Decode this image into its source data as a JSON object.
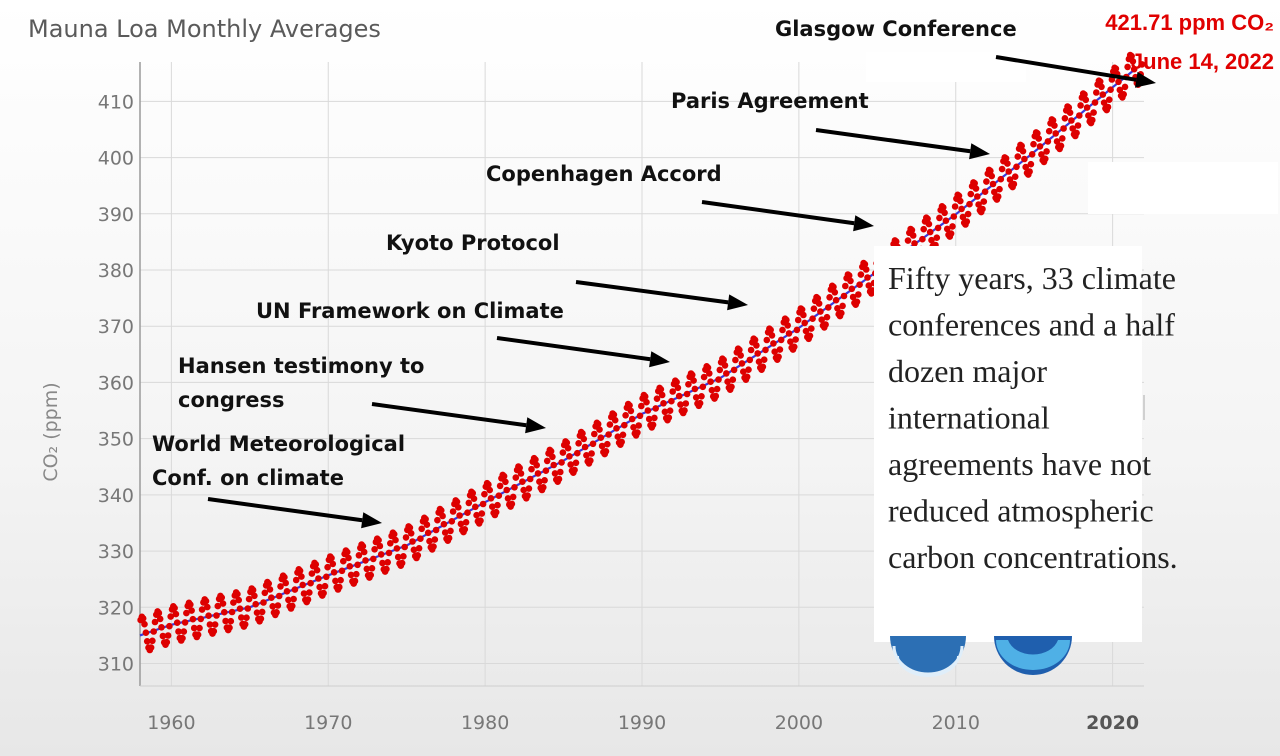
{
  "chart_data": {
    "type": "line",
    "title": "Mauna Loa Monthly Averages",
    "xlabel": "",
    "ylabel": "CO₂ (ppm)",
    "xlim": [
      1958,
      2022
    ],
    "ylim": [
      306,
      417
    ],
    "x_ticks": [
      "1960",
      "1970",
      "1980",
      "1990",
      "2000",
      "2010",
      "2020"
    ],
    "y_ticks": [
      "310",
      "320",
      "330",
      "340",
      "350",
      "360",
      "370",
      "380",
      "390",
      "400",
      "410"
    ],
    "grid": true,
    "series": [
      {
        "role": "monthly-points",
        "color": "#dd0000",
        "x": [
          1958,
          1960,
          1965,
          1970,
          1975,
          1980,
          1985,
          1990,
          1995,
          2000,
          2005,
          2010,
          2015,
          2020,
          2022
        ],
        "y": [
          315.0,
          316.9,
          320.0,
          325.7,
          331.0,
          338.7,
          346.1,
          354.4,
          360.8,
          369.7,
          379.8,
          389.9,
          401.0,
          412.5,
          417.0
        ],
        "seasonal_amplitude": 3.2
      },
      {
        "role": "trend-line",
        "color": "#3a3adc",
        "x": [
          1958,
          1960,
          1965,
          1970,
          1975,
          1980,
          1985,
          1990,
          1995,
          2000,
          2005,
          2010,
          2015,
          2020,
          2022
        ],
        "y": [
          315.0,
          316.9,
          320.0,
          325.7,
          331.0,
          338.7,
          346.1,
          354.4,
          360.8,
          369.7,
          379.8,
          389.9,
          401.0,
          412.5,
          417.0
        ]
      }
    ],
    "annotations": [
      {
        "id": "wmo",
        "lines": [
          "World Meteorological",
          "Conf. on climate"
        ]
      },
      {
        "id": "hansen",
        "lines": [
          "Hansen testimony to",
          "congress"
        ]
      },
      {
        "id": "unfccc",
        "lines": [
          "UN Framework on Climate"
        ]
      },
      {
        "id": "kyoto",
        "lines": [
          "Kyoto Protocol"
        ]
      },
      {
        "id": "copenhagen",
        "lines": [
          "Copenhagen Accord"
        ]
      },
      {
        "id": "paris",
        "lines": [
          "Paris Agreement"
        ]
      },
      {
        "id": "glasgow",
        "lines": [
          "Glasgow Conference"
        ]
      }
    ],
    "callout": {
      "value_line": "421.71 ppm CO₂",
      "date_line": "June 14, 2022"
    },
    "note": [
      "Fifty years, 33 climate",
      "conferences and a half",
      "dozen major",
      "international",
      "agreements  have not",
      "reduced atmospheric",
      "carbon concentrations."
    ]
  }
}
